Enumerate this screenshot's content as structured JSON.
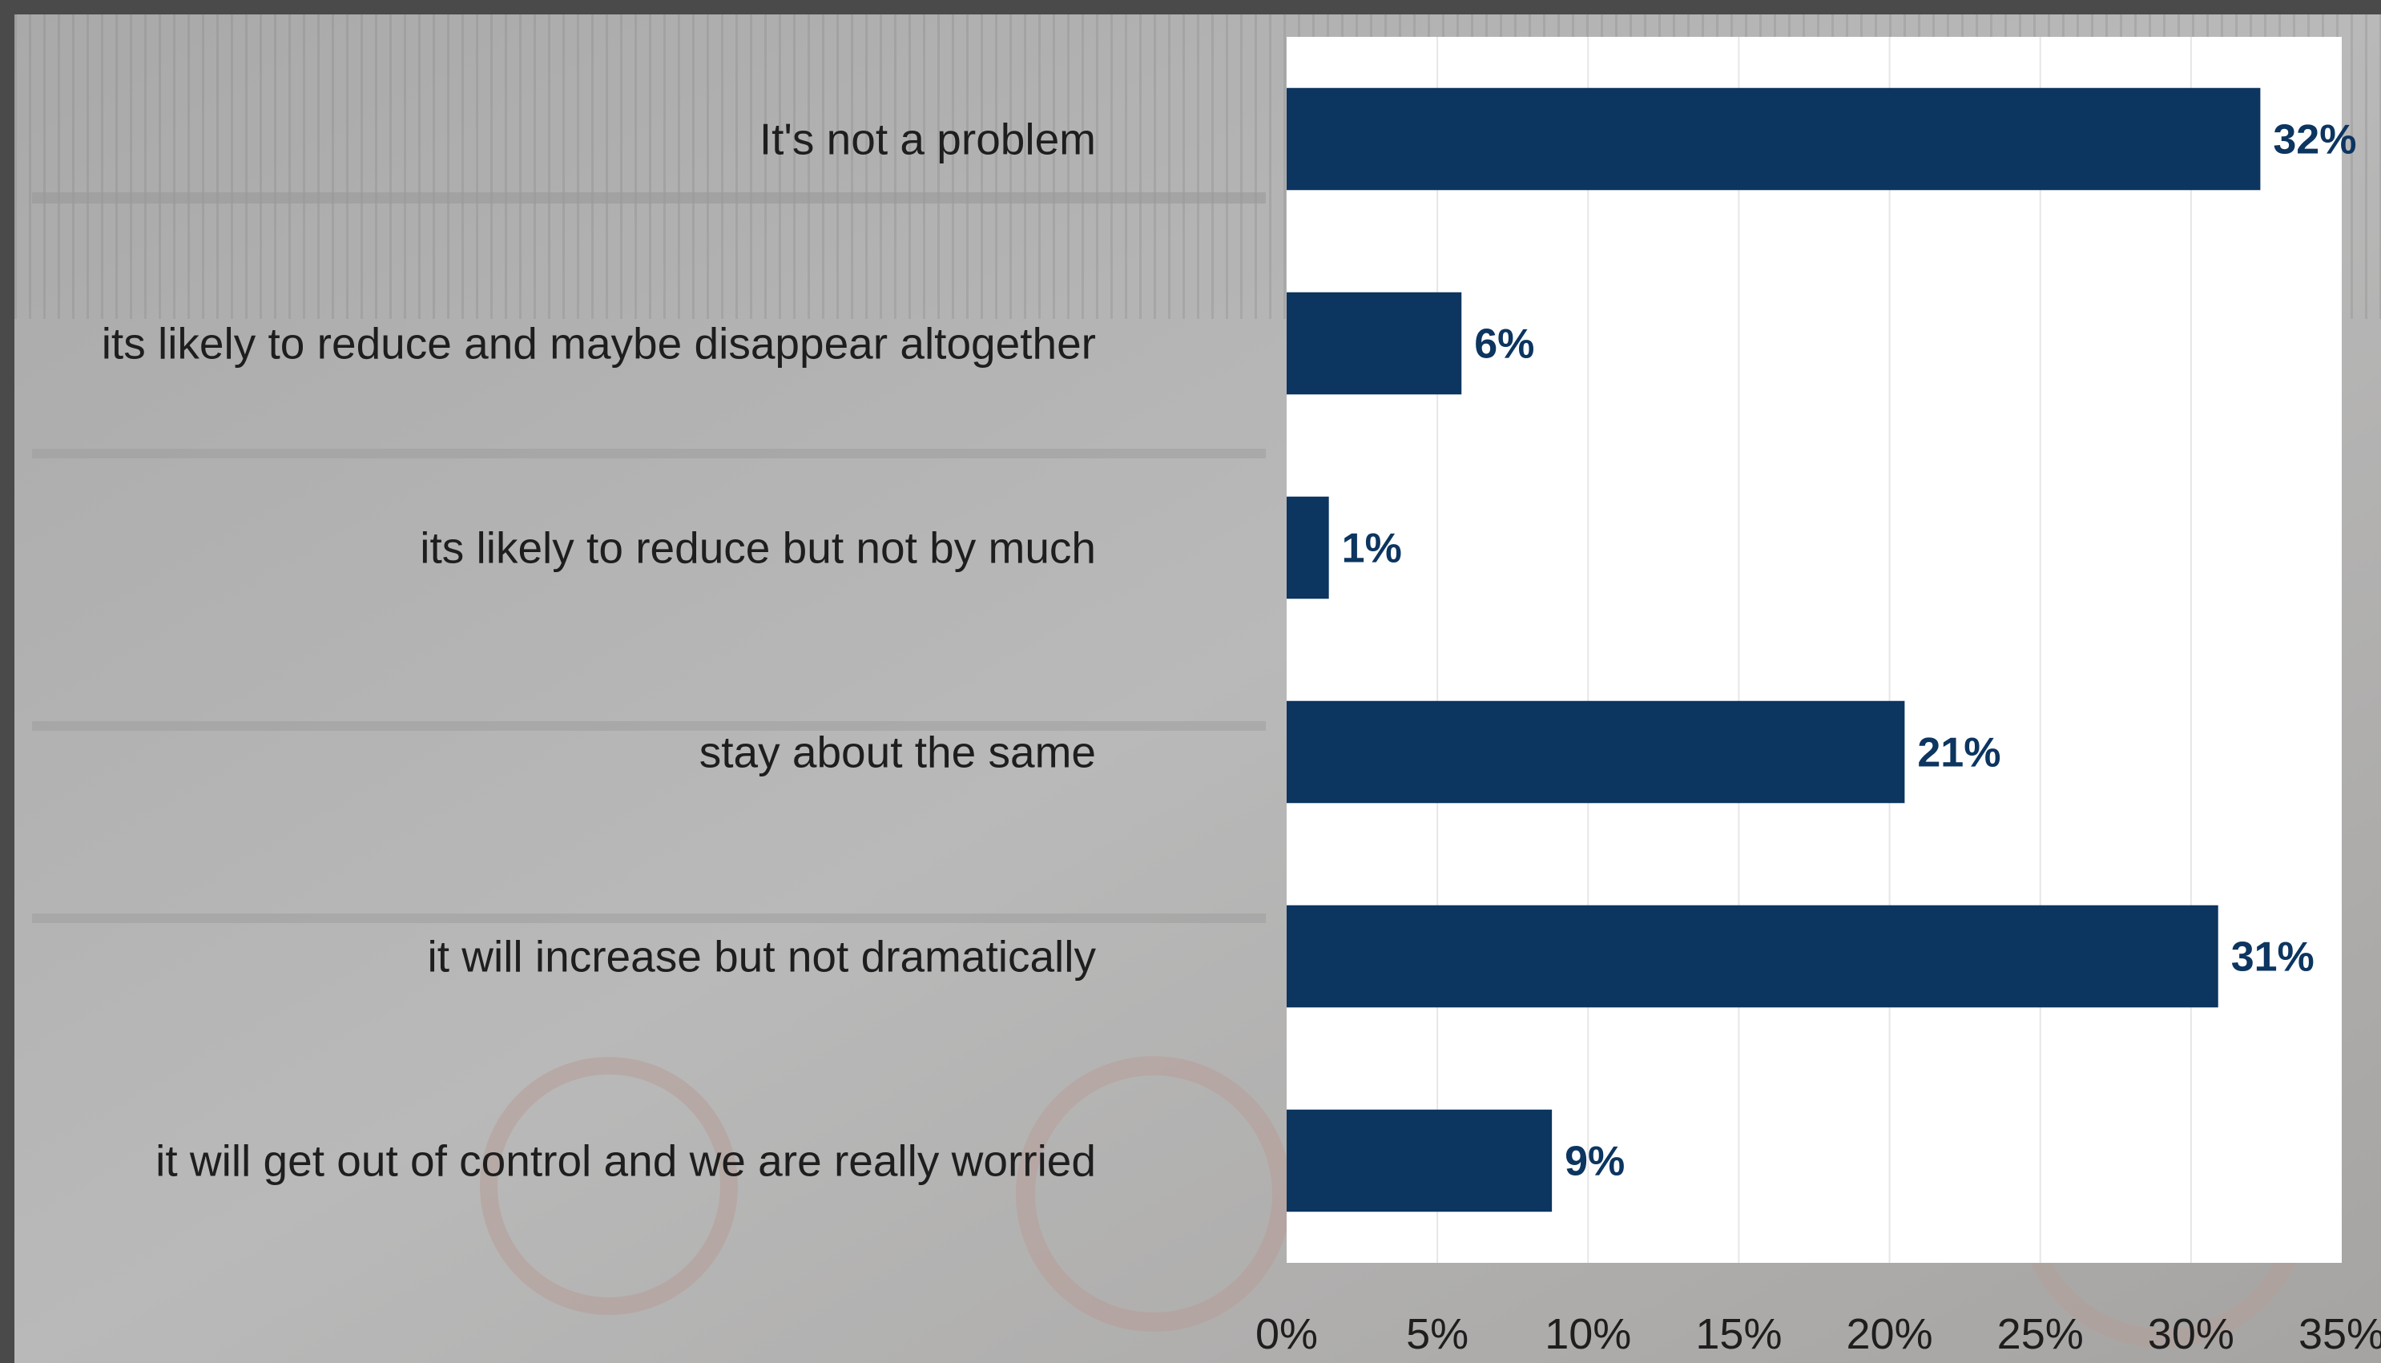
{
  "chart_data": {
    "type": "bar",
    "orientation": "horizontal",
    "title": "",
    "xlabel": "",
    "ylabel": "",
    "categories": [
      "It's not a problem",
      "its likely to reduce and maybe disappear altogether",
      "its likely to reduce but not by much",
      "stay about the same",
      "it will increase but not dramatically",
      "it will get out of control and we are really worried"
    ],
    "values": [
      32.3,
      5.8,
      1.4,
      20.5,
      30.9,
      8.8
    ],
    "value_labels": [
      "32%",
      "6%",
      "1%",
      "21%",
      "31%",
      "9%"
    ],
    "xlim": [
      0,
      35
    ],
    "xticks": [
      0,
      5,
      10,
      15,
      20,
      25,
      30,
      35
    ],
    "xtick_labels": [
      "0%",
      "5%",
      "10%",
      "15%",
      "20%",
      "25%",
      "30%",
      "35%"
    ],
    "grid": "vertical",
    "legend": "none",
    "bar_color": "#0c3560",
    "label_color": "#0c3560",
    "plot_background": "#ffffff",
    "page_background": "#b6b6b6"
  }
}
